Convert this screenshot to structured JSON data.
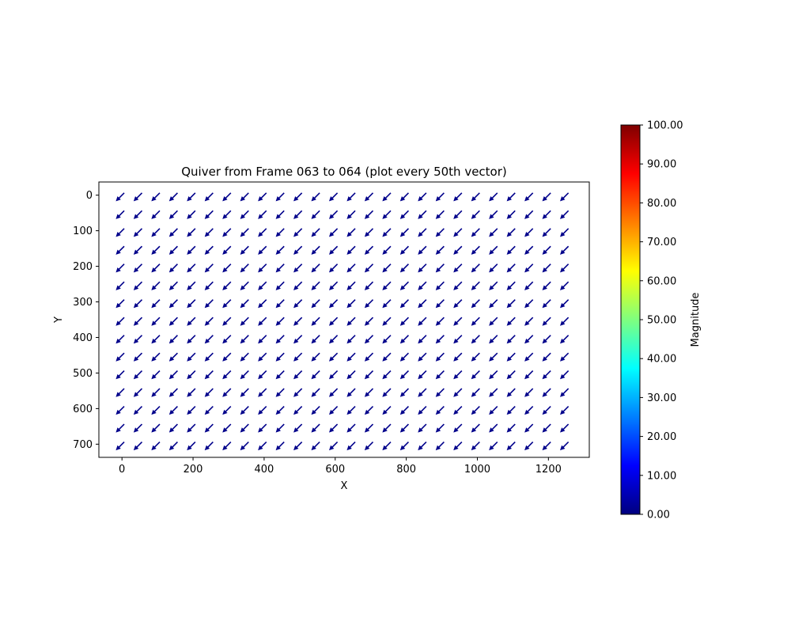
{
  "chart_data": {
    "type": "quiver",
    "title": "Quiver from Frame 063 to 064 (plot every 50th vector)",
    "xlabel": "X",
    "ylabel": "Y",
    "xlim": [
      -65,
      1315
    ],
    "ylim": [
      737,
      -37
    ],
    "y_inverted": true,
    "grid": false,
    "xticks": [
      0,
      200,
      400,
      600,
      800,
      1000,
      1200
    ],
    "xtick_labels": [
      "0",
      "200",
      "400",
      "600",
      "800",
      "1000",
      "1200"
    ],
    "yticks": [
      0,
      100,
      200,
      300,
      400,
      500,
      600,
      700
    ],
    "ytick_labels": [
      "0",
      "100",
      "200",
      "300",
      "400",
      "500",
      "600",
      "700"
    ],
    "grid_x": [
      0,
      50,
      100,
      150,
      200,
      250,
      300,
      350,
      400,
      450,
      500,
      550,
      600,
      650,
      700,
      750,
      800,
      850,
      900,
      950,
      1000,
      1050,
      1100,
      1150,
      1200,
      1250
    ],
    "grid_y": [
      0,
      50,
      100,
      150,
      200,
      250,
      300,
      350,
      400,
      450,
      500,
      550,
      600,
      650,
      700
    ],
    "vector": {
      "u": -1,
      "v": 1,
      "direction": "down-left",
      "note_units": "uniform"
    },
    "arrow_color": "#00008b",
    "colorbar": {
      "label": "Magnitude",
      "min": 0,
      "max": 100,
      "colormap": "jet",
      "tick_values": [
        0,
        10,
        20,
        30,
        40,
        50,
        60,
        70,
        80,
        90,
        100
      ],
      "tick_labels": [
        "0.00",
        "10.00",
        "20.00",
        "30.00",
        "40.00",
        "50.00",
        "60.00",
        "70.00",
        "80.00",
        "90.00",
        "100.00"
      ],
      "jet_stops": [
        "#00007f",
        "#0000ff",
        "#007fff",
        "#00ffff",
        "#7fff7f",
        "#ffff00",
        "#ff7f00",
        "#ff0000",
        "#7f0000"
      ]
    }
  }
}
